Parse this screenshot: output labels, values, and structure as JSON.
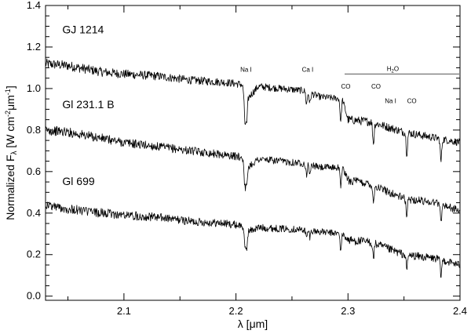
{
  "chart_data": {
    "type": "line",
    "xlabel": "λ [μm]",
    "ylabel": "Normalized F",
    "ylabel_sub": "λ",
    "ylabel_units": " [W cm",
    "ylabel_exp1": "-2",
    "ylabel_mid": "μm",
    "ylabel_exp2": "-1",
    "ylabel_end": "]",
    "xlim": [
      2.03,
      2.4
    ],
    "ylim": [
      -0.02,
      1.4
    ],
    "x_ticks": [
      2.1,
      2.2,
      2.3,
      2.4
    ],
    "x_tick_labels": [
      "2.1",
      "2.2",
      "2.3",
      "2.4"
    ],
    "y_ticks": [
      0.0,
      0.2,
      0.4,
      0.6,
      0.8,
      1.0,
      1.2,
      1.4
    ],
    "y_tick_labels": [
      "0.0",
      "0.2",
      "0.4",
      "0.6",
      "0.8",
      "1.0",
      "1.2",
      "1.4"
    ],
    "grid": false,
    "series": [
      {
        "name": "GJ 1214",
        "label_at": [
          2.045,
          1.265
        ],
        "x": [
          2.03,
          2.05,
          2.08,
          2.1,
          2.13,
          2.16,
          2.19,
          2.205,
          2.21,
          2.22,
          2.26,
          2.275,
          2.295,
          2.3,
          2.32,
          2.35,
          2.38,
          2.4
        ],
        "y": [
          1.12,
          1.11,
          1.08,
          1.07,
          1.06,
          1.04,
          1.03,
          1.02,
          0.95,
          1.01,
          0.99,
          0.96,
          0.95,
          0.85,
          0.84,
          0.79,
          0.76,
          0.74
        ],
        "lines": [
          {
            "x": 2.208,
            "depth": 0.14
          },
          {
            "x": 2.2095,
            "depth": 0.12
          },
          {
            "x": 2.263,
            "depth": 0.06
          },
          {
            "x": 2.266,
            "depth": 0.05
          },
          {
            "x": 2.2935,
            "depth": 0.11
          },
          {
            "x": 2.3227,
            "depth": 0.1
          },
          {
            "x": 2.3525,
            "depth": 0.1
          },
          {
            "x": 2.383,
            "depth": 0.11
          }
        ]
      },
      {
        "name": "Gl 231.1 B",
        "label_at": [
          2.045,
          0.905
        ],
        "x": [
          2.03,
          2.05,
          2.08,
          2.1,
          2.13,
          2.16,
          2.19,
          2.205,
          2.21,
          2.22,
          2.26,
          2.275,
          2.295,
          2.3,
          2.32,
          2.35,
          2.38,
          2.4
        ],
        "y": [
          0.8,
          0.79,
          0.76,
          0.74,
          0.72,
          0.7,
          0.68,
          0.67,
          0.62,
          0.66,
          0.64,
          0.62,
          0.62,
          0.56,
          0.54,
          0.47,
          0.45,
          0.41
        ],
        "lines": [
          {
            "x": 2.208,
            "depth": 0.11
          },
          {
            "x": 2.2095,
            "depth": 0.1
          },
          {
            "x": 2.263,
            "depth": 0.05
          },
          {
            "x": 2.266,
            "depth": 0.04
          },
          {
            "x": 2.2935,
            "depth": 0.09
          },
          {
            "x": 2.3227,
            "depth": 0.08
          },
          {
            "x": 2.3525,
            "depth": 0.08
          },
          {
            "x": 2.383,
            "depth": 0.09
          }
        ]
      },
      {
        "name": "Gl 699",
        "label_at": [
          2.045,
          0.535
        ],
        "x": [
          2.03,
          2.05,
          2.08,
          2.1,
          2.13,
          2.16,
          2.19,
          2.205,
          2.21,
          2.22,
          2.26,
          2.275,
          2.295,
          2.3,
          2.32,
          2.35,
          2.38,
          2.4
        ],
        "y": [
          0.44,
          0.42,
          0.4,
          0.39,
          0.38,
          0.36,
          0.35,
          0.34,
          0.31,
          0.33,
          0.32,
          0.31,
          0.3,
          0.27,
          0.26,
          0.2,
          0.18,
          0.15
        ],
        "lines": [
          {
            "x": 2.208,
            "depth": 0.09
          },
          {
            "x": 2.2095,
            "depth": 0.08
          },
          {
            "x": 2.263,
            "depth": 0.04
          },
          {
            "x": 2.266,
            "depth": 0.03
          },
          {
            "x": 2.2935,
            "depth": 0.08
          },
          {
            "x": 2.3227,
            "depth": 0.07
          },
          {
            "x": 2.3525,
            "depth": 0.07
          },
          {
            "x": 2.383,
            "depth": 0.08
          }
        ]
      }
    ],
    "annotations": [
      {
        "text": "Na I",
        "x": 2.209,
        "y": 1.08
      },
      {
        "text": "Ca I",
        "x": 2.264,
        "y": 1.08
      },
      {
        "text": "CO",
        "x": 2.298,
        "y": 1.0
      },
      {
        "text": "CO",
        "x": 2.325,
        "y": 1.0
      },
      {
        "text": "Na I",
        "x": 2.338,
        "y": 0.93
      },
      {
        "text": "CO",
        "x": 2.357,
        "y": 0.93
      }
    ],
    "band": {
      "text": "H",
      "sub": "2",
      "tail": "O",
      "x1": 2.297,
      "x2": 2.4,
      "y": 1.07,
      "label_x": 2.34
    }
  }
}
